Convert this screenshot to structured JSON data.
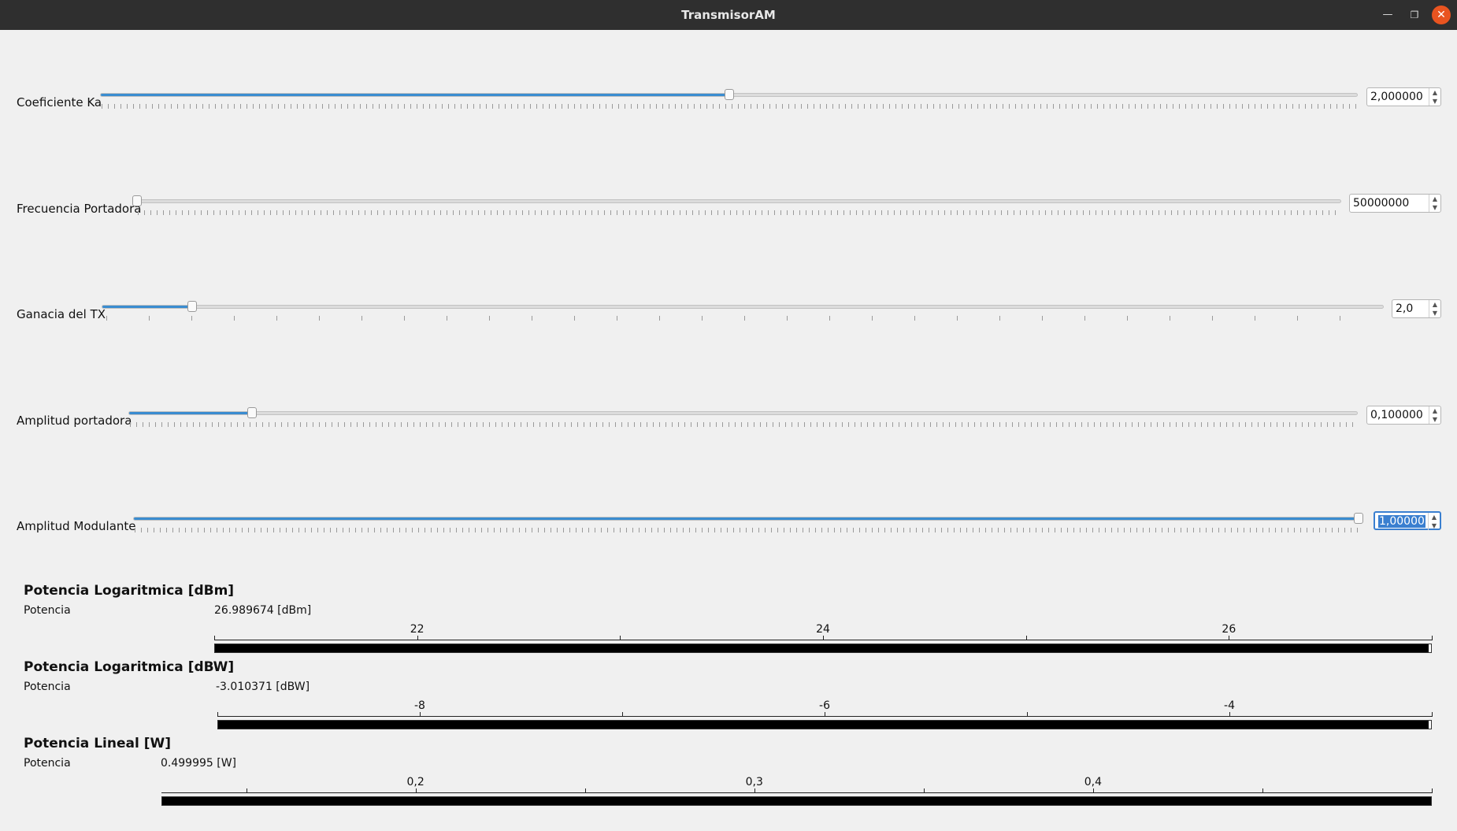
{
  "window": {
    "title": "TransmisorAM"
  },
  "controls": [
    {
      "label": "Coeficiente Ka",
      "value_text": "2,000000",
      "fraction": 0.5
    },
    {
      "label": "Frecuencia Portadora",
      "value_text": "50000000",
      "fraction": 0.0
    },
    {
      "label": "Ganacia del TX",
      "value_text": "2,0",
      "fraction": 0.07
    },
    {
      "label": "Amplitud portadora",
      "value_text": "0,100000",
      "fraction": 0.1
    },
    {
      "label": "Amplitud Modulante",
      "value_text": "1,00000",
      "fraction": 1.0
    }
  ],
  "meters": [
    {
      "heading": "Potencia Logaritmica [dBm]",
      "label": "Potencia",
      "value_text": "26.989674 [dBm]",
      "value": 26.989674,
      "scale_min": 21.0,
      "scale_max": 27.0,
      "tick_labels": [
        "22",
        "24",
        "26"
      ],
      "tick_values": [
        22,
        24,
        26
      ]
    },
    {
      "heading": "Potencia Logaritmica [dBW]",
      "label": "Potencia",
      "value_text": "-3.010371 [dBW]",
      "value": -3.010371,
      "scale_min": -9.0,
      "scale_max": -3.0,
      "tick_labels": [
        "-8",
        "-6",
        "-4"
      ],
      "tick_values": [
        -8,
        -6,
        -4
      ]
    },
    {
      "heading": "Potencia Lineal [W]",
      "label": "Potencia",
      "value_text": "0.499995 [W]",
      "value": 0.499995,
      "scale_min": 0.125,
      "scale_max": 0.5,
      "tick_labels": [
        "0,2",
        "0,3",
        "0,4"
      ],
      "tick_values": [
        0.2,
        0.3,
        0.4
      ]
    }
  ]
}
